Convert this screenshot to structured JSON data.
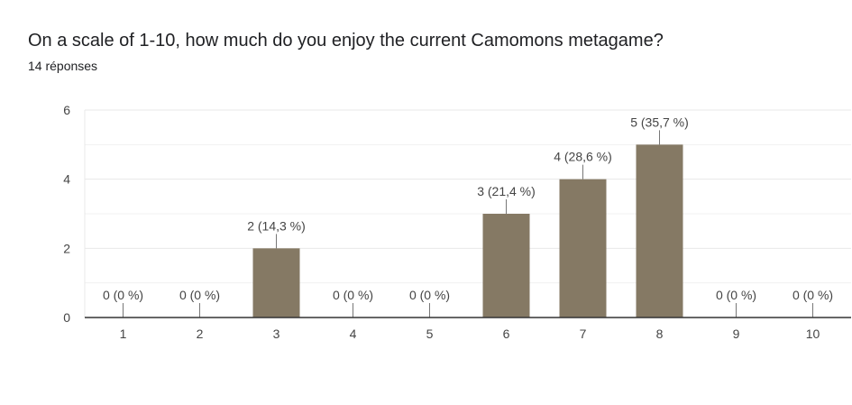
{
  "question": {
    "title": "On a scale of 1-10, how much do you enjoy the current Camomons metagame?",
    "responses": "14 réponses"
  },
  "colors": {
    "bar": "#857964",
    "grid": "#e8e8e8",
    "axis": "#333333",
    "text": "#444444"
  },
  "chart_data": {
    "type": "bar",
    "categories": [
      "1",
      "2",
      "3",
      "4",
      "5",
      "6",
      "7",
      "8",
      "9",
      "10"
    ],
    "values": [
      0,
      0,
      2,
      0,
      0,
      3,
      4,
      5,
      0,
      0
    ],
    "data_labels": [
      "0 (0 %)",
      "0 (0 %)",
      "2 (14,3 %)",
      "0 (0 %)",
      "0 (0 %)",
      "3 (21,4 %)",
      "4 (28,6 %)",
      "5 (35,7 %)",
      "0 (0 %)",
      "0 (0 %)"
    ],
    "ylim": [
      0,
      6
    ],
    "yticks": [
      0,
      2,
      4,
      6
    ],
    "minor_gridlines": [
      1,
      3,
      5
    ],
    "grid": true,
    "legend": "none",
    "title": "",
    "xlabel": "",
    "ylabel": ""
  }
}
